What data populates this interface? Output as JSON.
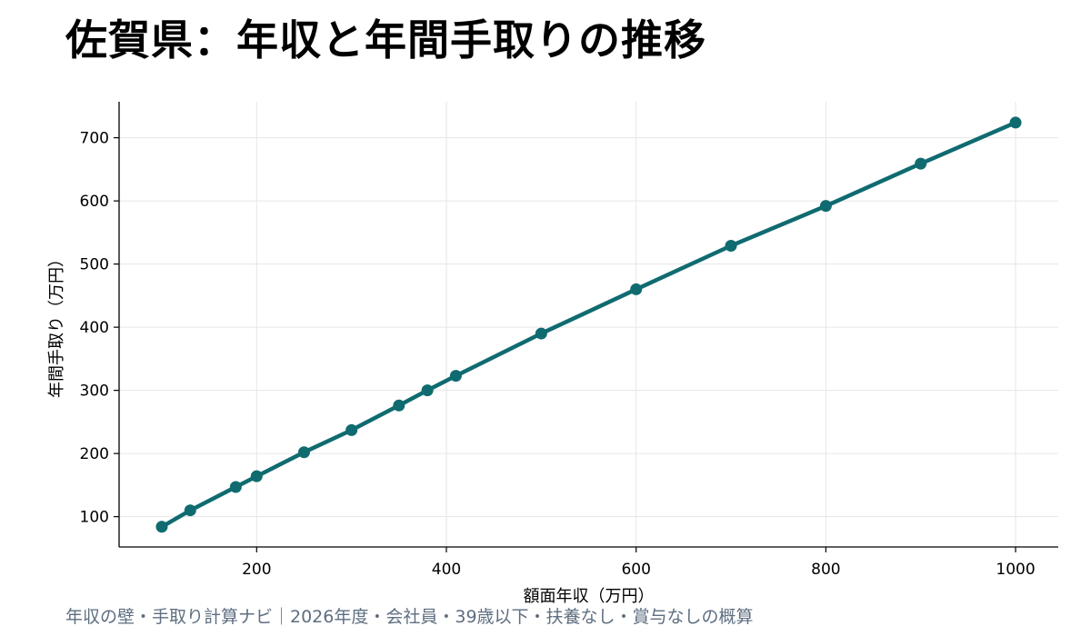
{
  "title": "佐賀県：年収と年間手取りの推移",
  "footer": "年収の壁・手取り計算ナビ｜2026年度・会社員・39歳以下・扶養なし・賞与なしの概算",
  "colors": {
    "line": "#0f6b70",
    "grid": "#e6e6e6",
    "axis": "#000000",
    "footer": "#5e6e80"
  },
  "chart_data": {
    "type": "line",
    "title": "佐賀県：年収と年間手取りの推移",
    "xlabel": "額面年収（万円）",
    "ylabel": "年間手取り（万円）",
    "xlim": [
      55,
      1045
    ],
    "ylim": [
      52,
      757
    ],
    "xticks": [
      200,
      400,
      600,
      800,
      1000
    ],
    "yticks": [
      100,
      200,
      300,
      400,
      500,
      600,
      700
    ],
    "grid": true,
    "x": [
      100,
      130,
      178,
      200,
      250,
      300,
      350,
      380,
      410,
      500,
      600,
      700,
      800,
      900,
      1000
    ],
    "series": [
      {
        "values": [
          84,
          110,
          147,
          164,
          202,
          237,
          276,
          300,
          323,
          390,
          460,
          529,
          592,
          659,
          724
        ]
      }
    ]
  }
}
